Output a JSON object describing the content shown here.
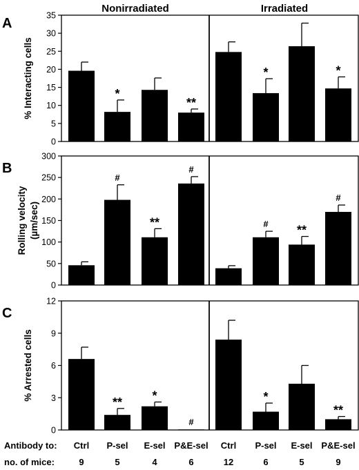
{
  "column_headers": [
    "Nonirradiated",
    "Irradiated"
  ],
  "footer": {
    "antibody_label": "Antibody to:",
    "mice_label": "no. of mice:",
    "antibodies": [
      "Ctrl",
      "P-sel",
      "E-sel",
      "P&E-sel",
      "Ctrl",
      "P-sel",
      "E-sel",
      "P&E-sel"
    ],
    "mice_counts": [
      "9",
      "5",
      "4",
      "6",
      "12",
      "6",
      "5",
      "9"
    ]
  },
  "chart_data": [
    {
      "type": "bar",
      "panel_letter": "A",
      "ylabel": "% Interacting cells",
      "ylim": [
        0,
        35
      ],
      "yticks": [
        0,
        5,
        10,
        15,
        20,
        25,
        30,
        35
      ],
      "tick_labels": [
        "0",
        "5",
        "10",
        "15",
        "20",
        "25",
        "30",
        "35"
      ],
      "groups": [
        {
          "name": "Nonirradiated",
          "categories": [
            "Ctrl",
            "P-sel",
            "E-sel",
            "P&E-sel"
          ],
          "values": [
            19.6,
            8.2,
            14.3,
            8.0
          ],
          "errors": [
            2.4,
            3.3,
            3.3,
            1.0
          ],
          "annotations": [
            "",
            "*",
            "",
            "**"
          ]
        },
        {
          "name": "Irradiated",
          "categories": [
            "Ctrl",
            "P-sel",
            "E-sel",
            "P&E-sel"
          ],
          "values": [
            24.8,
            13.4,
            26.4,
            14.7
          ],
          "errors": [
            2.8,
            4.0,
            6.4,
            3.2
          ],
          "annotations": [
            "",
            "*",
            "",
            "*"
          ]
        }
      ],
      "grid": false
    },
    {
      "type": "bar",
      "panel_letter": "B",
      "ylabel": "Rolling velocity",
      "ylabel2": "(µm/sec)",
      "ylim": [
        0,
        300
      ],
      "yticks": [
        0,
        50,
        100,
        150,
        200,
        250,
        300
      ],
      "tick_labels": [
        "0",
        "50",
        "100",
        "150",
        "200",
        "250",
        "300"
      ],
      "groups": [
        {
          "name": "Nonirradiated",
          "categories": [
            "Ctrl",
            "P-sel",
            "E-sel",
            "P&E-sel"
          ],
          "values": [
            46,
            198,
            111,
            236
          ],
          "errors": [
            8,
            35,
            20,
            16
          ],
          "annotations": [
            "",
            "#",
            "**",
            "#"
          ]
        },
        {
          "name": "Irradiated",
          "categories": [
            "Ctrl",
            "P-sel",
            "E-sel",
            "P&E-sel"
          ],
          "values": [
            39,
            111,
            94,
            170
          ],
          "errors": [
            6,
            14,
            19,
            16
          ],
          "annotations": [
            "",
            "#",
            "**",
            "#"
          ]
        }
      ],
      "grid": false
    },
    {
      "type": "bar",
      "panel_letter": "C",
      "ylabel": "% Arrested cells",
      "ylim": [
        0,
        12
      ],
      "yticks": [
        0,
        3,
        6,
        9,
        12
      ],
      "tick_labels": [
        "0",
        "3",
        "6",
        "9",
        "12"
      ],
      "groups": [
        {
          "name": "Nonirradiated",
          "categories": [
            "Ctrl",
            "P-sel",
            "E-sel",
            "P&E-sel"
          ],
          "values": [
            6.6,
            1.4,
            2.2,
            0.05
          ],
          "errors": [
            1.1,
            0.6,
            0.4,
            0
          ],
          "annotations": [
            "",
            "**",
            "*",
            "#"
          ]
        },
        {
          "name": "Irradiated",
          "categories": [
            "Ctrl",
            "P-sel",
            "E-sel",
            "P&E-sel"
          ],
          "values": [
            8.4,
            1.7,
            4.3,
            1.0
          ],
          "errors": [
            1.8,
            0.8,
            1.7,
            0.25
          ],
          "annotations": [
            "",
            "*",
            "",
            "**"
          ]
        }
      ],
      "grid": false
    }
  ]
}
